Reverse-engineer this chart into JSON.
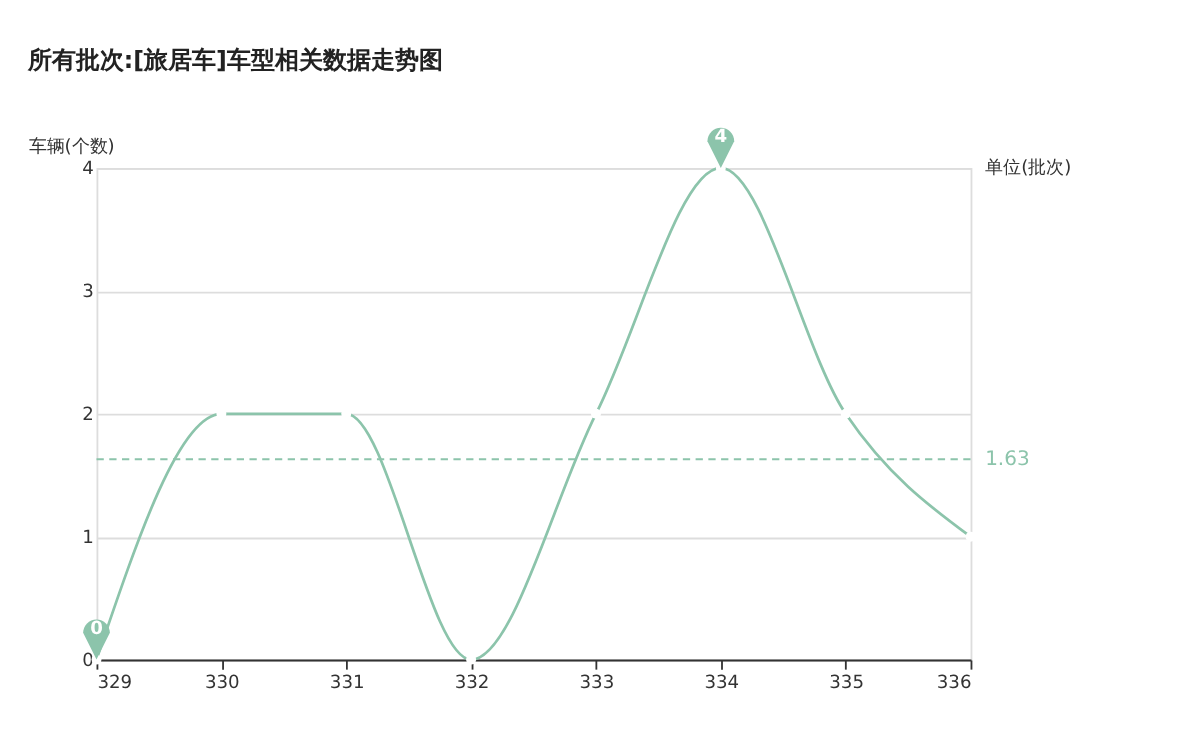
{
  "chart_data": {
    "type": "line",
    "title": "所有批次:[旅居车]车型相关数据走势图",
    "xlabel": "单位(批次)",
    "ylabel": "车辆(个数)",
    "x": [
      329,
      330,
      331,
      332,
      333,
      334,
      335,
      336
    ],
    "series": [
      {
        "color": "#8cc4ab",
        "values": [
          0,
          2,
          2,
          0,
          2,
          4,
          2,
          1
        ]
      }
    ],
    "xlim": [
      329,
      336
    ],
    "xticks": [
      329,
      330,
      331,
      332,
      333,
      334,
      335,
      336
    ],
    "ylim": [
      0,
      4
    ],
    "yticks": [
      0,
      1,
      2,
      3,
      4
    ],
    "grid": "y",
    "marker": "circle",
    "line_style": "solid",
    "ref_lines": [
      {
        "axis": "y",
        "value": 1.63,
        "label": "1.63",
        "color": "#8cc4ab",
        "line_style": "dashed"
      }
    ],
    "annotations": [
      {
        "text": "4",
        "x": 334,
        "y": 4
      },
      {
        "text": "0",
        "x": 329,
        "y": 0
      }
    ]
  }
}
